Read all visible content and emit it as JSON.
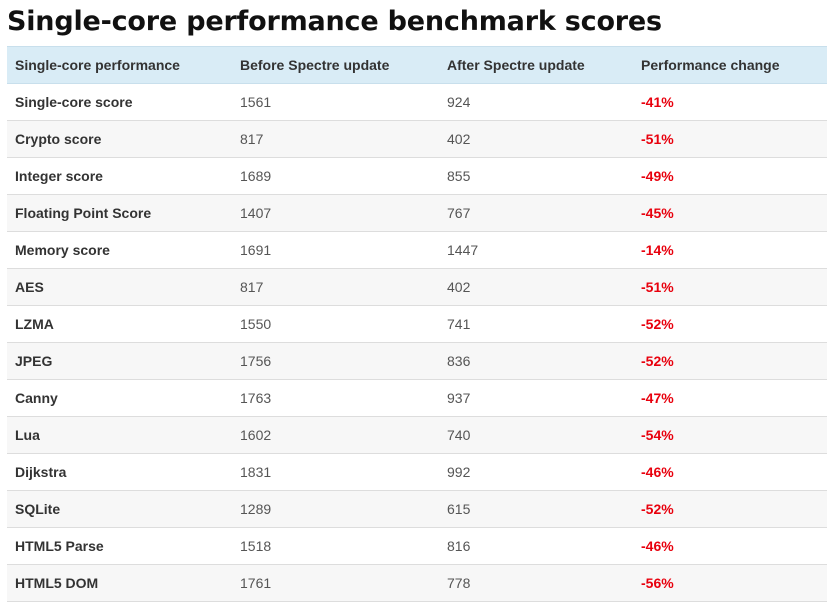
{
  "title": "Single-core performance benchmark scores",
  "table": {
    "headers": [
      "Single-core performance",
      "Before Spectre update",
      "After Spectre update",
      "Performance change"
    ],
    "rows": [
      [
        "Single-core score",
        "1561",
        "924",
        "-41%"
      ],
      [
        "Crypto score",
        "817",
        "402",
        "-51%"
      ],
      [
        "Integer score",
        "1689",
        "855",
        "-49%"
      ],
      [
        "Floating Point Score",
        "1407",
        "767",
        "-45%"
      ],
      [
        "Memory score",
        "1691",
        "1447",
        "-14%"
      ],
      [
        "AES",
        "817",
        "402",
        "-51%"
      ],
      [
        "LZMA",
        "1550",
        "741",
        "-52%"
      ],
      [
        "JPEG",
        "1756",
        "836",
        "-52%"
      ],
      [
        "Canny",
        "1763",
        "937",
        "-47%"
      ],
      [
        "Lua",
        "1602",
        "740",
        "-54%"
      ],
      [
        "Dijkstra",
        "1831",
        "992",
        "-46%"
      ],
      [
        "SQLite",
        "1289",
        "615",
        "-52%"
      ],
      [
        "HTML5 Parse",
        "1518",
        "816",
        "-46%"
      ],
      [
        "HTML5 DOM",
        "1761",
        "778",
        "-56%"
      ]
    ]
  },
  "colors": {
    "header_background": "#d9ecf6",
    "negative_change": "#e8000d",
    "stripe": "#f7f7f7"
  }
}
